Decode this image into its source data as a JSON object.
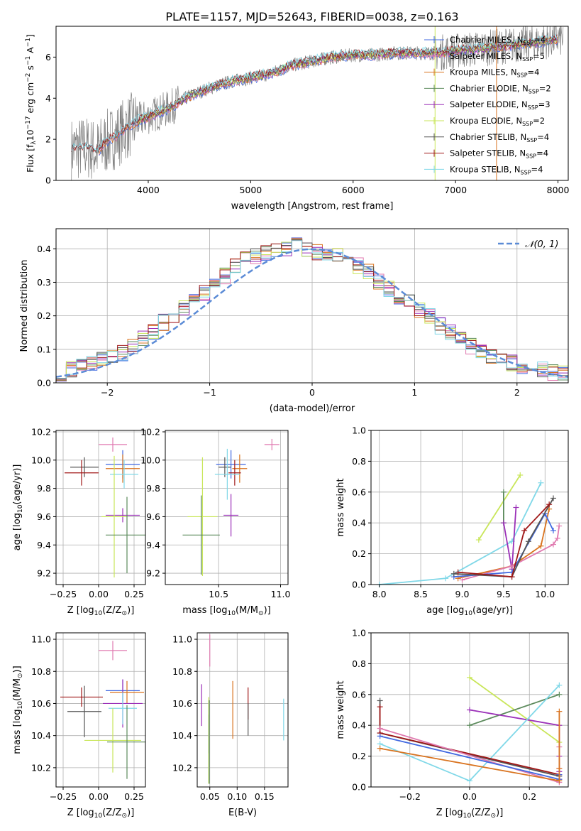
{
  "figure_title": "PLATE=1157, MJD=52643, FIBERID=0038, z=0.163",
  "colors": {
    "chabrier_miles": "#4169e1",
    "salpeter_miles": "#e07ab0",
    "kroupa_miles": "#d9731f",
    "chabrier_elodie": "#5c8a5c",
    "salpeter_elodie": "#9b30b8",
    "kroupa_elodie": "#c9e65a",
    "chabrier_stelib": "#555555",
    "salpeter_stelib": "#a01818",
    "kroupa_stelib": "#80d8e8",
    "data": "#808080",
    "gaussian": "#5b8bd6"
  },
  "chart_data": [
    {
      "type": "line",
      "panel": "spectrum",
      "xlabel": "wavelength [Angstrom, rest frame]",
      "ylabel": "Flux [f",
      "ylabel_sub": "λ",
      "ylabel_mid": "10",
      "ylabel_sup": "−17",
      "ylabel_end": " erg cm",
      "ylabel_sup2": "−2",
      "ylabel_end2": " s",
      "ylabel_sup3": "−1",
      "ylabel_end3": " A",
      "ylabel_sup4": "−1",
      "ylabel_close": "]",
      "xlim": [
        3100,
        8100
      ],
      "ylim": [
        0,
        7.5
      ],
      "xticks": [
        "4000",
        "5000",
        "6000",
        "7000",
        "8000"
      ],
      "yticks": [
        "0",
        "2",
        "4",
        "6"
      ],
      "legend_location": "top-right",
      "legend": [
        {
          "name": "Chabrier MILES, N",
          "sub": "SSP",
          "n": "=4"
        },
        {
          "name": "Salpeter MILES, N",
          "sub": "SSP",
          "n": "=5"
        },
        {
          "name": "Kroupa MILES, N",
          "sub": "SSP",
          "n": "=4"
        },
        {
          "name": "Chabrier ELODIE, N",
          "sub": "SSP",
          "n": "=2"
        },
        {
          "name": "Salpeter ELODIE, N",
          "sub": "SSP",
          "n": "=3"
        },
        {
          "name": "Kroupa ELODIE, N",
          "sub": "SSP",
          "n": "=2"
        },
        {
          "name": "Chabrier STELIB, N",
          "sub": "SSP",
          "n": "=4"
        },
        {
          "name": "Salpeter STELIB, N",
          "sub": "SSP",
          "n": "=4"
        },
        {
          "name": "Kroupa STELIB, N",
          "sub": "SSP",
          "n": "=4"
        }
      ],
      "continuum": {
        "x": [
          3250,
          3400,
          3500,
          3600,
          3700,
          3800,
          3900,
          4000,
          4200,
          4400,
          4600,
          4800,
          5000,
          5200,
          5400,
          5600,
          5800,
          6000,
          6200,
          6400,
          6600,
          6800,
          7000,
          7200,
          7400,
          7600,
          7800,
          8000
        ],
        "y": [
          1.5,
          1.6,
          1.4,
          1.9,
          2.2,
          2.6,
          2.9,
          3.1,
          3.5,
          4.1,
          4.5,
          4.8,
          5.0,
          5.2,
          5.6,
          5.8,
          6.0,
          6.1,
          6.1,
          6.2,
          6.2,
          6.2,
          6.3,
          6.4,
          6.5,
          6.6,
          6.7,
          6.9
        ]
      }
    },
    {
      "type": "line",
      "panel": "residual_histogram",
      "xlabel": "(data-model)/error",
      "ylabel": "Normed distribution",
      "xlim": [
        -2.5,
        2.5
      ],
      "ylim": [
        0,
        0.46
      ],
      "xticks": [
        "−2",
        "−1",
        "0",
        "1",
        "2"
      ],
      "yticks": [
        "0.0",
        "0.1",
        "0.2",
        "0.3",
        "0.4"
      ],
      "grid": true,
      "legend_location": "top-right",
      "gaussian_label": "𝒩(0, 1)",
      "bin_width": 0.1,
      "hist_envelope": [
        0.03,
        0.04,
        0.05,
        0.06,
        0.07,
        0.08,
        0.09,
        0.11,
        0.13,
        0.15,
        0.18,
        0.2,
        0.22,
        0.25,
        0.27,
        0.3,
        0.32,
        0.35,
        0.37,
        0.38,
        0.39,
        0.4,
        0.4,
        0.41,
        0.4,
        0.39,
        0.39,
        0.38,
        0.37,
        0.35,
        0.33,
        0.3,
        0.28,
        0.26,
        0.24,
        0.22,
        0.2,
        0.17,
        0.15,
        0.13,
        0.11,
        0.09,
        0.08,
        0.07,
        0.06,
        0.05,
        0.05,
        0.04,
        0.03,
        0.03
      ]
    },
    {
      "type": "scatter",
      "panel": "age_vs_Z",
      "xlabel": "Z [log",
      "xlabel_sub": "10",
      "xlabel_rest": "(Z/Z",
      "xlabel_sub2": "⊙",
      "xlabel_close": ")]",
      "ylabel": "age  [log",
      "ylabel_sub": "10",
      "ylabel_rest": "(age/yr)]",
      "xlim": [
        -0.3,
        0.33
      ],
      "ylim": [
        9.12,
        10.21
      ],
      "xticks": [
        "−0.25",
        "0.00",
        "0.25"
      ],
      "yticks": [
        "9.2",
        "9.4",
        "9.6",
        "9.8",
        "10.0",
        "10.2"
      ],
      "points": [
        {
          "model": "salpeter_miles",
          "x": 0.1,
          "y": 10.11,
          "xerr": 0.1,
          "yerr": 0.05
        },
        {
          "model": "chabrier_miles",
          "x": 0.17,
          "y": 9.97,
          "xerr": 0.12,
          "yerr": 0.1
        },
        {
          "model": "kroupa_miles",
          "x": 0.17,
          "y": 9.94,
          "xerr": 0.12,
          "yerr": 0.1
        },
        {
          "model": "chabrier_stelib",
          "x": -0.1,
          "y": 9.95,
          "xerr": 0.1,
          "yerr": 0.07
        },
        {
          "model": "salpeter_stelib",
          "x": -0.12,
          "y": 9.91,
          "xerr": 0.12,
          "yerr": 0.09
        },
        {
          "model": "kroupa_stelib",
          "x": 0.18,
          "y": 9.9,
          "xerr": 0.1,
          "yerr": 0.1
        },
        {
          "model": "salpeter_elodie",
          "x": 0.17,
          "y": 9.61,
          "xerr": 0.12,
          "yerr": 0.05
        },
        {
          "model": "kroupa_elodie",
          "x": 0.11,
          "y": 9.6,
          "xerr": 0.09,
          "yerr": 0.43
        },
        {
          "model": "chabrier_elodie",
          "x": 0.2,
          "y": 9.47,
          "xerr": 0.15,
          "yerr": 0.27
        }
      ]
    },
    {
      "type": "scatter",
      "panel": "age_vs_mass",
      "xlabel": "mass [log",
      "xlabel_sub": "10",
      "xlabel_rest": "(M/M",
      "xlabel_sub2": "⊙",
      "xlabel_close": ")]",
      "xlim": [
        10.07,
        11.06
      ],
      "ylim": [
        9.12,
        10.21
      ],
      "xticks": [
        "10.5",
        "11.0"
      ],
      "yticks": [
        "9.2",
        "9.4",
        "9.6",
        "9.8",
        "10.0",
        "10.2"
      ],
      "points": [
        {
          "model": "salpeter_miles",
          "x": 10.93,
          "y": 10.11,
          "xerr": 0.06,
          "yerr": 0.04
        },
        {
          "model": "chabrier_miles",
          "x": 10.6,
          "y": 9.97,
          "xerr": 0.12,
          "yerr": 0.1
        },
        {
          "model": "kroupa_miles",
          "x": 10.67,
          "y": 9.94,
          "xerr": 0.06,
          "yerr": 0.1
        },
        {
          "model": "chabrier_stelib",
          "x": 10.55,
          "y": 9.95,
          "xerr": 0.05,
          "yerr": 0.07
        },
        {
          "model": "salpeter_stelib",
          "x": 10.63,
          "y": 9.91,
          "xerr": 0.05,
          "yerr": 0.09
        },
        {
          "model": "kroupa_stelib",
          "x": 10.57,
          "y": 9.9,
          "xerr": 0.1,
          "yerr": 0.18
        },
        {
          "model": "salpeter_elodie",
          "x": 10.6,
          "y": 9.61,
          "xerr": 0.06,
          "yerr": 0.15
        },
        {
          "model": "kroupa_elodie",
          "x": 10.37,
          "y": 9.6,
          "xerr": 0.12,
          "yerr": 0.42
        },
        {
          "model": "chabrier_elodie",
          "x": 10.36,
          "y": 9.47,
          "xerr": 0.15,
          "yerr": 0.28
        }
      ]
    },
    {
      "type": "line",
      "panel": "mass_weight_vs_age",
      "xlabel": "age  [log",
      "xlabel_sub": "10",
      "xlabel_rest": "(age/yr)]",
      "ylabel": "mass weight",
      "xlim": [
        7.9,
        10.28
      ],
      "ylim": [
        0,
        1.0
      ],
      "xticks": [
        "8.0",
        "8.5",
        "9.0",
        "9.5",
        "10.0"
      ],
      "yticks": [
        "0.0",
        "0.2",
        "0.4",
        "0.6",
        "0.8",
        "1.0"
      ],
      "grid": true,
      "series": [
        {
          "model": "kroupa_stelib",
          "x": [
            8.0,
            8.8,
            9.6,
            9.95
          ],
          "y": [
            0.0,
            0.04,
            0.28,
            0.66
          ]
        },
        {
          "model": "kroupa_elodie",
          "x": [
            9.2,
            9.7
          ],
          "y": [
            0.29,
            0.71
          ]
        },
        {
          "model": "chabrier_elodie",
          "x": [
            9.5,
            9.5
          ],
          "y": [
            0.4,
            0.6
          ]
        },
        {
          "model": "salpeter_elodie",
          "x": [
            9.5,
            9.6,
            9.65
          ],
          "y": [
            0.4,
            0.1,
            0.5
          ]
        },
        {
          "model": "kroupa_miles",
          "x": [
            8.95,
            9.6,
            9.95,
            10.05
          ],
          "y": [
            0.04,
            0.12,
            0.25,
            0.49
          ]
        },
        {
          "model": "salpeter_miles",
          "x": [
            9.0,
            9.6,
            10.1,
            10.15,
            10.17
          ],
          "y": [
            0.03,
            0.12,
            0.26,
            0.3,
            0.38
          ]
        },
        {
          "model": "chabrier_miles",
          "x": [
            8.9,
            9.6,
            10.0,
            10.1
          ],
          "y": [
            0.05,
            0.08,
            0.46,
            0.35
          ]
        },
        {
          "model": "chabrier_stelib",
          "x": [
            8.9,
            9.6,
            9.8,
            10.1
          ],
          "y": [
            0.07,
            0.05,
            0.28,
            0.56
          ]
        },
        {
          "model": "salpeter_stelib",
          "x": [
            8.95,
            9.6,
            9.75,
            10.05
          ],
          "y": [
            0.08,
            0.05,
            0.35,
            0.52
          ]
        }
      ]
    },
    {
      "type": "scatter",
      "panel": "mass_vs_Z",
      "xlabel": "Z [log",
      "xlabel_sub": "10",
      "xlabel_rest": "(Z/Z",
      "xlabel_sub2": "⊙",
      "xlabel_close": ")]",
      "ylabel": "mass [log",
      "ylabel_sub": "10",
      "ylabel_rest": "(M/M",
      "ylabel_sub2": "⊙",
      "ylabel_close": ")]",
      "xlim": [
        -0.3,
        0.33
      ],
      "ylim": [
        10.08,
        11.04
      ],
      "xticks": [
        "−0.25",
        "0.00",
        "0.25"
      ],
      "yticks": [
        "10.2",
        "10.4",
        "10.6",
        "10.8",
        "11.0"
      ],
      "points": [
        {
          "model": "salpeter_miles",
          "x": 0.1,
          "y": 10.93,
          "xerr": 0.1,
          "yerr": 0.06
        },
        {
          "model": "chabrier_miles",
          "x": 0.17,
          "y": 10.68,
          "xerr": 0.12,
          "yerr": 0.07
        },
        {
          "model": "kroupa_miles",
          "x": 0.2,
          "y": 10.67,
          "xerr": 0.12,
          "yerr": 0.07
        },
        {
          "model": "salpeter_stelib",
          "x": -0.12,
          "y": 10.64,
          "xerr": 0.15,
          "yerr": 0.06
        },
        {
          "model": "salpeter_elodie",
          "x": 0.17,
          "y": 10.6,
          "xerr": 0.14,
          "yerr": 0.15
        },
        {
          "model": "kroupa_stelib",
          "x": 0.17,
          "y": 10.57,
          "xerr": 0.1,
          "yerr": 0.1
        },
        {
          "model": "chabrier_stelib",
          "x": -0.1,
          "y": 10.55,
          "xerr": 0.12,
          "yerr": 0.16
        },
        {
          "model": "kroupa_elodie",
          "x": 0.1,
          "y": 10.37,
          "xerr": 0.2,
          "yerr": 0.2
        },
        {
          "model": "chabrier_elodie",
          "x": 0.2,
          "y": 10.36,
          "xerr": 0.14,
          "yerr": 0.23
        }
      ]
    },
    {
      "type": "scatter",
      "panel": "mass_vs_EBV",
      "xlabel": "E(B-V)",
      "xlim": [
        0.027,
        0.193
      ],
      "ylim": [
        10.08,
        11.04
      ],
      "xticks": [
        "0.05",
        "0.10",
        "0.15"
      ],
      "yticks": [
        "10.2",
        "10.4",
        "10.6",
        "10.8",
        "11.0"
      ],
      "points": [
        {
          "model": "salpeter_miles",
          "x": 0.05,
          "y": 10.93,
          "yerr": 0.1
        },
        {
          "model": "salpeter_elodie",
          "x": 0.035,
          "y": 10.59,
          "yerr": 0.13
        },
        {
          "model": "kroupa_miles",
          "x": 0.092,
          "y": 10.56,
          "yerr": 0.18
        },
        {
          "model": "salpeter_stelib",
          "x": 0.12,
          "y": 10.6,
          "yerr": 0.1
        },
        {
          "model": "chabrier_stelib",
          "x": 0.12,
          "y": 10.5,
          "yerr": 0.1
        },
        {
          "model": "kroupa_stelib",
          "x": 0.185,
          "y": 10.5,
          "yerr": 0.13
        },
        {
          "model": "chabrier_miles",
          "x": 0.048,
          "y": 10.41,
          "yerr": 0.12
        },
        {
          "model": "kroupa_elodie",
          "x": 0.048,
          "y": 10.37,
          "yerr": 0.27
        },
        {
          "model": "chabrier_elodie",
          "x": 0.049,
          "y": 10.36,
          "yerr": 0.26
        }
      ]
    },
    {
      "type": "line",
      "panel": "mass_weight_vs_Z",
      "xlabel": "Z [log",
      "xlabel_sub": "10",
      "xlabel_rest": "(Z/Z",
      "xlabel_sub2": "⊙",
      "xlabel_close": ")]",
      "ylabel": "mass weight",
      "xlim": [
        -0.33,
        0.33
      ],
      "ylim": [
        0,
        1.0
      ],
      "xticks": [
        "−0.2",
        "0.0",
        "0.2"
      ],
      "yticks": [
        "0.0",
        "0.2",
        "0.4",
        "0.6",
        "0.8",
        "1.0"
      ],
      "grid": true,
      "series": [
        {
          "model": "kroupa_elodie",
          "x": [
            0.0,
            0.3
          ],
          "y": [
            0.71,
            0.29
          ]
        },
        {
          "model": "chabrier_elodie",
          "x": [
            0.0,
            0.3
          ],
          "y": [
            0.4,
            0.6
          ]
        },
        {
          "model": "salpeter_elodie",
          "x": [
            0.0,
            0.3,
            0.3,
            0.3
          ],
          "y": [
            0.5,
            0.4,
            0.2,
            0.1
          ]
        },
        {
          "model": "kroupa_stelib",
          "x": [
            -0.3,
            0.0,
            0.3
          ],
          "y": [
            0.28,
            0.04,
            0.66
          ]
        },
        {
          "model": "chabrier_stelib",
          "x": [
            -0.3,
            -0.3,
            0.3
          ],
          "y": [
            0.56,
            0.35,
            0.07
          ]
        },
        {
          "model": "salpeter_stelib",
          "x": [
            -0.3,
            -0.3,
            0.3,
            0.3
          ],
          "y": [
            0.52,
            0.35,
            0.08,
            0.05
          ]
        },
        {
          "model": "salpeter_miles",
          "x": [
            -0.3,
            0.3,
            0.3,
            0.3
          ],
          "y": [
            0.38,
            0.03,
            0.12,
            0.26
          ]
        },
        {
          "model": "chabrier_miles",
          "x": [
            -0.3,
            0.3,
            0.3
          ],
          "y": [
            0.33,
            0.05,
            0.08
          ]
        },
        {
          "model": "kroupa_miles",
          "x": [
            -0.3,
            0.3,
            0.3,
            0.3
          ],
          "y": [
            0.25,
            0.04,
            0.12,
            0.49
          ]
        }
      ]
    }
  ]
}
